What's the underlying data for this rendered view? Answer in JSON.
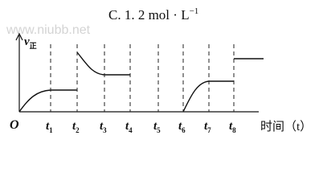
{
  "header": {
    "text": "C. 1. 2 mol · L",
    "superscript": "−1"
  },
  "watermark": "www.niubb.net",
  "y_axis_label": {
    "symbol": "v",
    "subscript": "正"
  },
  "origin_label": "O",
  "x_axis_label": "时间（t）",
  "ticks": [
    {
      "symbol": "t",
      "subscript": "1"
    },
    {
      "symbol": "t",
      "subscript": "2"
    },
    {
      "symbol": "t",
      "subscript": "3"
    },
    {
      "symbol": "t",
      "subscript": "4"
    },
    {
      "symbol": "t",
      "subscript": "5"
    },
    {
      "symbol": "t",
      "subscript": "6"
    },
    {
      "symbol": "t",
      "subscript": "7"
    },
    {
      "symbol": "t",
      "subscript": "8"
    }
  ]
}
